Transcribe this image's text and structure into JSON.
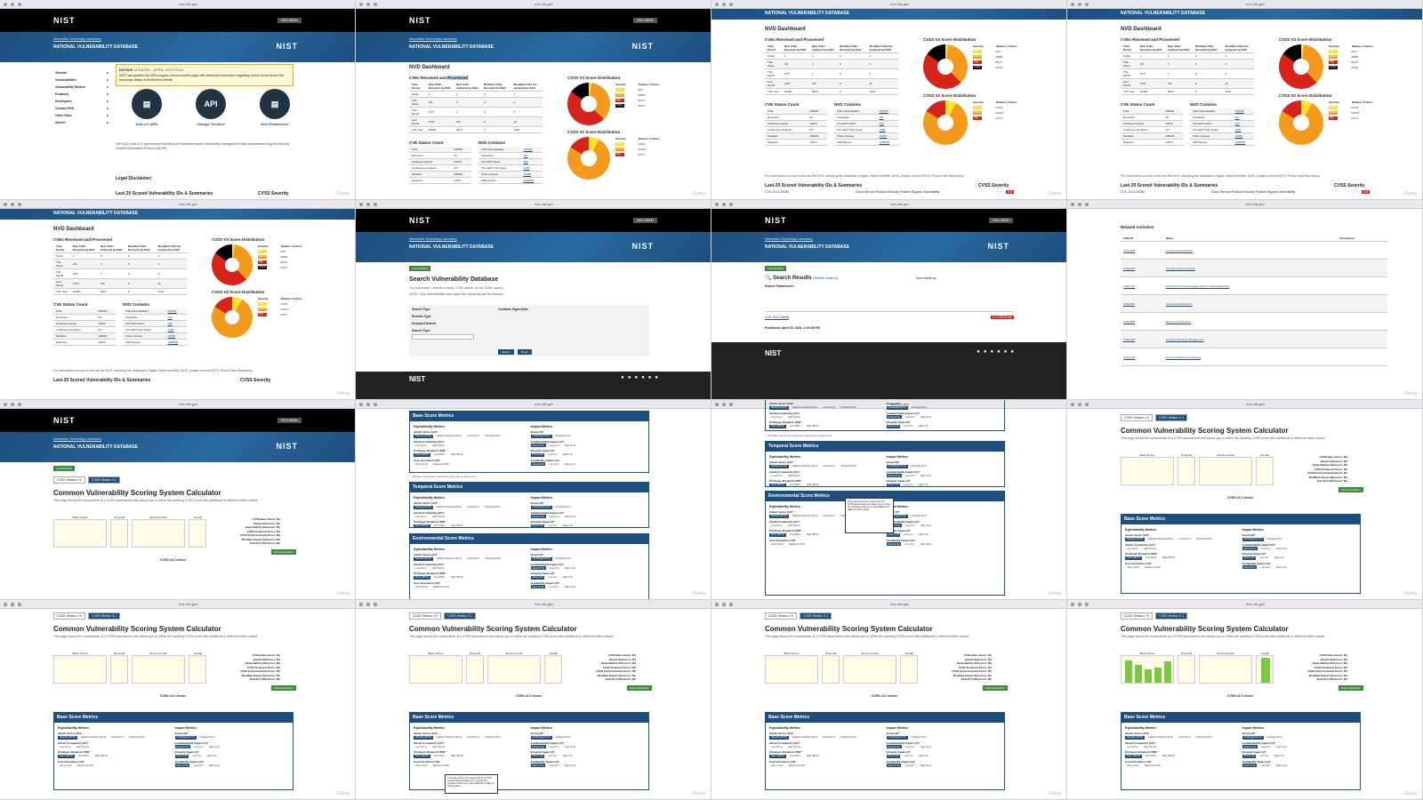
{
  "browser": {
    "url": "nvd.nist.gov",
    "watermark": "Gbimg"
  },
  "nist": {
    "logo": "NIST",
    "crumb": "Information Technology Laboratory",
    "site": "NATIONAL VULNERABILITY DATABASE",
    "menu_label": "NVD MENU"
  },
  "home": {
    "nav": [
      "General",
      "Vulnerabilities",
      "Vulnerability Metrics",
      "Products",
      "Developers",
      "Contact NVD",
      "Other Sites",
      "Search"
    ],
    "notice_title": "NOTICE",
    "notice_date": "UPDATED - APRIL, 25TH 2024",
    "notice_body": "NIST has updated the NVD program announcement page with additional information regarding recent concerns and the temporary delays in enrichment efforts.",
    "cards": [
      {
        "icon": "clipboard-icon",
        "label": "New 2.0 APIs"
      },
      {
        "icon": "api-icon",
        "label": "Change Timeline"
      },
      {
        "icon": "known-exploited-icon",
        "label": "New Parameters"
      }
    ],
    "intro": "The NVD is the U.S. government repository of standards based vulnerability management data represented using the Security Content Automation Protocol (SCAP).",
    "legal": "Legal Disclaimer:",
    "last20": "Last 20 Scored Vulnerability IDs & Summaries",
    "cvss_sev": "CVSS Severity"
  },
  "dashboard": {
    "title": "NVD Dashboard",
    "received_title": "CVEs Received and Processed",
    "received_title_pre": "CVEs Received and ",
    "received_title_hl": "Processed",
    "received_headers": [
      "Time Period",
      "New CVEs Received by NVD",
      "New CVEs Analyzed by NVD",
      "Modified CVEs Received by NVD",
      "Modified CVEs Re-analyzed by NVD"
    ],
    "received_rows": [
      [
        "Today",
        "1",
        "0",
        "0",
        "0"
      ],
      [
        "This Week",
        "161",
        "3",
        "0",
        "0"
      ],
      [
        "This Month",
        "1477",
        "1",
        "0",
        "0"
      ],
      [
        "Last Month",
        "2790",
        "232",
        "0",
        "22"
      ],
      [
        "This Year",
        "16028",
        "3923",
        "0",
        "1243"
      ]
    ],
    "status_title": "CVE Status Count",
    "status_rows": [
      [
        "Total",
        "245090"
      ],
      [
        "Received",
        "99"
      ],
      [
        "Awaiting Analysis",
        "10316"
      ],
      [
        "Undergoing Analysis",
        "217"
      ],
      [
        "Modified",
        "198320"
      ],
      [
        "Rejected",
        "14071"
      ]
    ],
    "contains_title": "NVD Contains",
    "contains_rows": [
      [
        "CVE Vulnerabilities",
        "245091"
      ],
      [
        "Checklists",
        "787"
      ],
      [
        "US-CERT Alerts",
        "249"
      ],
      [
        "US-CERT Vuln Notes",
        "4486"
      ],
      [
        "OVAL Queries",
        "10286"
      ],
      [
        "CPE Names",
        "1388055"
      ]
    ],
    "v3_title": "CVSS V3 Score Distribution",
    "v2_title": "CVSS V2 Score Distribution",
    "legend_headers": [
      "Severity",
      "Number of Vulns"
    ],
    "v3_legend": [
      [
        "Low",
        "2957"
      ],
      [
        "Medium",
        "49885"
      ],
      [
        "High",
        "66027"
      ],
      [
        "Critical",
        "21501"
      ]
    ],
    "v2_legend": [
      [
        "Low",
        "10604"
      ],
      [
        "Medium",
        "100347"
      ],
      [
        "High",
        "21674"
      ]
    ],
    "colors": {
      "low": "#f6e32a",
      "medium": "#f49a1c",
      "high": "#d8231b",
      "critical": "#000000"
    },
    "footnote": "For information on how to the cite the NVD, including the database's Digital Object Identifier (DOI), please consult NIST's Public Data Repository.",
    "cve_row": [
      "CVE-2024-28688",
      "Cloud Service Protocol Security Feature Bypass Vulnerability",
      "8.8"
    ]
  },
  "search": {
    "status": "Last Modified",
    "title": "Search Vulnerability Database",
    "subtitle": "Try a product / vendor name, CVE name, or an OVAL query.",
    "note": "NOTE: Only vulnerabilities that match ALL keywords will be returned.",
    "fields": [
      "Search Type",
      "Results Type",
      "Keyword Search",
      "Search Type"
    ],
    "hint": "Contains Hyperlinks",
    "buttons": [
      "Search",
      "Reset"
    ],
    "results_title": "Search Results",
    "refine": "(Refine Search)",
    "results_params": "Search Parameters:",
    "sort": "Sort results by:",
    "result_id": "CVE-2024-28688",
    "published": "Published: April 25, 2024; 4:15:09 PM",
    "result_sev": "9.1 CRITICAL",
    "cwe_headers": [
      "CWE-ID",
      "Name",
      "Description"
    ],
    "cwe_rows": [
      [
        "CWE-285",
        "Improper Authorization"
      ],
      [
        "CWE-284",
        "Improper Access Control"
      ],
      [
        "CWE-732",
        "Incorrect Permission Assignment for Critical Resource"
      ],
      [
        "CWE-863",
        "Incorrect Authorization"
      ],
      [
        "CWE-862",
        "Missing Authorization"
      ],
      [
        "CWE-269",
        "Improper Privilege Management"
      ],
      [
        "CWE-276",
        "Incorrect Default Permissions"
      ]
    ],
    "related": "Related Activities"
  },
  "calc": {
    "tabs": [
      "CVSS Version 2.0",
      "CVSS Version 3.1"
    ],
    "title": "Common Vulnerability Scoring System Calculator",
    "desc": "This page shows the components of a CVSS assessment and allows you to refine the resulting CVSS score with additional or different metric values.",
    "chart_groups": [
      "Base Scores",
      "Temporal",
      "Environmental",
      "Overall"
    ],
    "scores": [
      "CVSS Base Score: NA",
      "Impact Subscore: NA",
      "Exploitability Subscore: NA",
      "CVSS Temporal Score: NA",
      "CVSS Environmental Score: NA",
      "Modified Impact Subscore: NA",
      "Overall CVSS Score: NA"
    ],
    "show_eq": "Show Equations",
    "vector": "CVSS v3.1 Vector",
    "base_title": "Base Score Metrics",
    "temporal_title": "Temporal Score Metrics",
    "env_title": "Environmental Score Metrics",
    "expl": "Exploitability Metrics",
    "impact": "Impact Metrics",
    "metrics": [
      {
        "name": "Attack Vector (AV)*",
        "opts": [
          "Network (AV:N)",
          "Adjacent Network (AV:A)",
          "Local (AV:L)",
          "Physical (AV:P)"
        ]
      },
      {
        "name": "Attack Complexity (AC)*",
        "opts": [
          "Low (AC:L)",
          "High (AC:H)"
        ]
      },
      {
        "name": "Privileges Required (PR)*",
        "opts": [
          "None (PR:N)",
          "Low (PR:L)",
          "High (PR:H)"
        ]
      },
      {
        "name": "User Interaction (UI)*",
        "opts": [
          "None (UI:N)",
          "Required (UI:R)"
        ]
      }
    ],
    "impact_metrics": [
      {
        "name": "Scope (S)*",
        "opts": [
          "Unchanged (S:U)",
          "Changed (S:C)"
        ]
      },
      {
        "name": "Confidentiality Impact (C)*",
        "opts": [
          "None (C:N)",
          "Low (C:L)",
          "High (C:H)"
        ]
      },
      {
        "name": "Integrity Impact (I)*",
        "opts": [
          "None (I:N)",
          "Low (I:L)",
          "High (I:H)"
        ]
      },
      {
        "name": "Availability Impact (A)*",
        "opts": [
          "None (A:N)",
          "Low (A:L)",
          "High (A:H)"
        ]
      }
    ],
    "required_note": "* - All base metrics are required to generate a base score.",
    "final_bars": [
      0.9,
      0.7,
      0.55,
      0.6,
      0.85
    ]
  }
}
